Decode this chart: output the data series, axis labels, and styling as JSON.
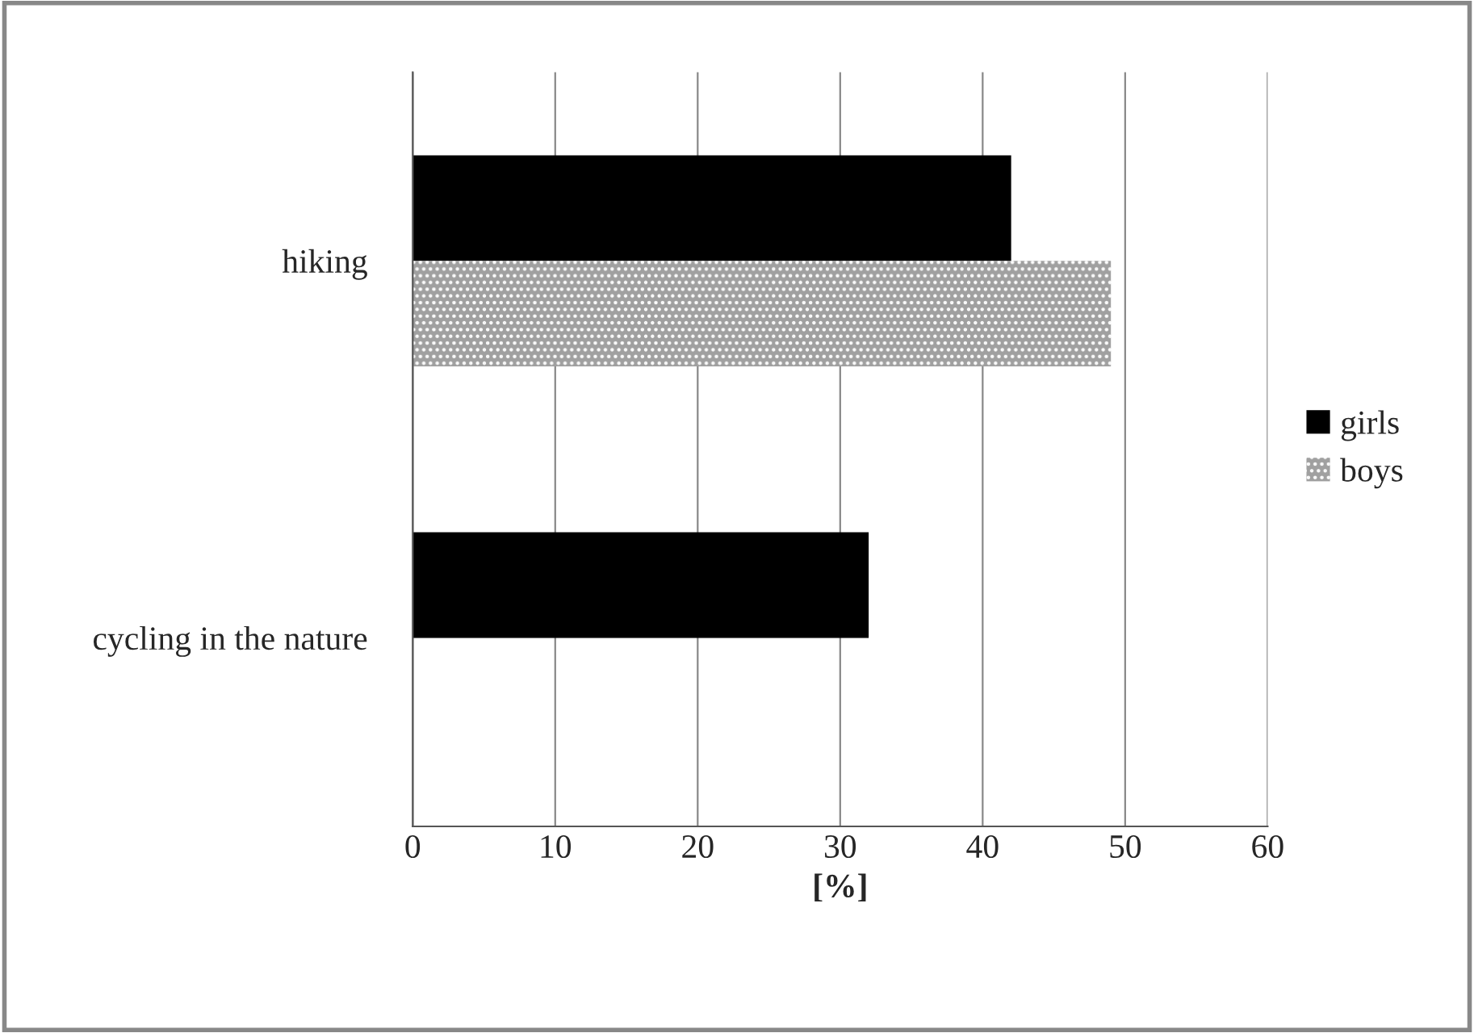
{
  "chart_data": {
    "type": "bar",
    "orientation": "horizontal",
    "xlabel": "[%]",
    "categories": [
      "hiking",
      "cycling in the nature"
    ],
    "series": [
      {
        "name": "girls",
        "color": "#000000",
        "values": [
          42,
          32
        ]
      },
      {
        "name": "boys",
        "color": "#a0a0a0",
        "values": [
          49,
          null
        ]
      }
    ],
    "xlim": [
      0,
      60
    ],
    "xticks": [
      0,
      10,
      20,
      30,
      40,
      50,
      60
    ],
    "grid": "x",
    "legend": "right"
  }
}
